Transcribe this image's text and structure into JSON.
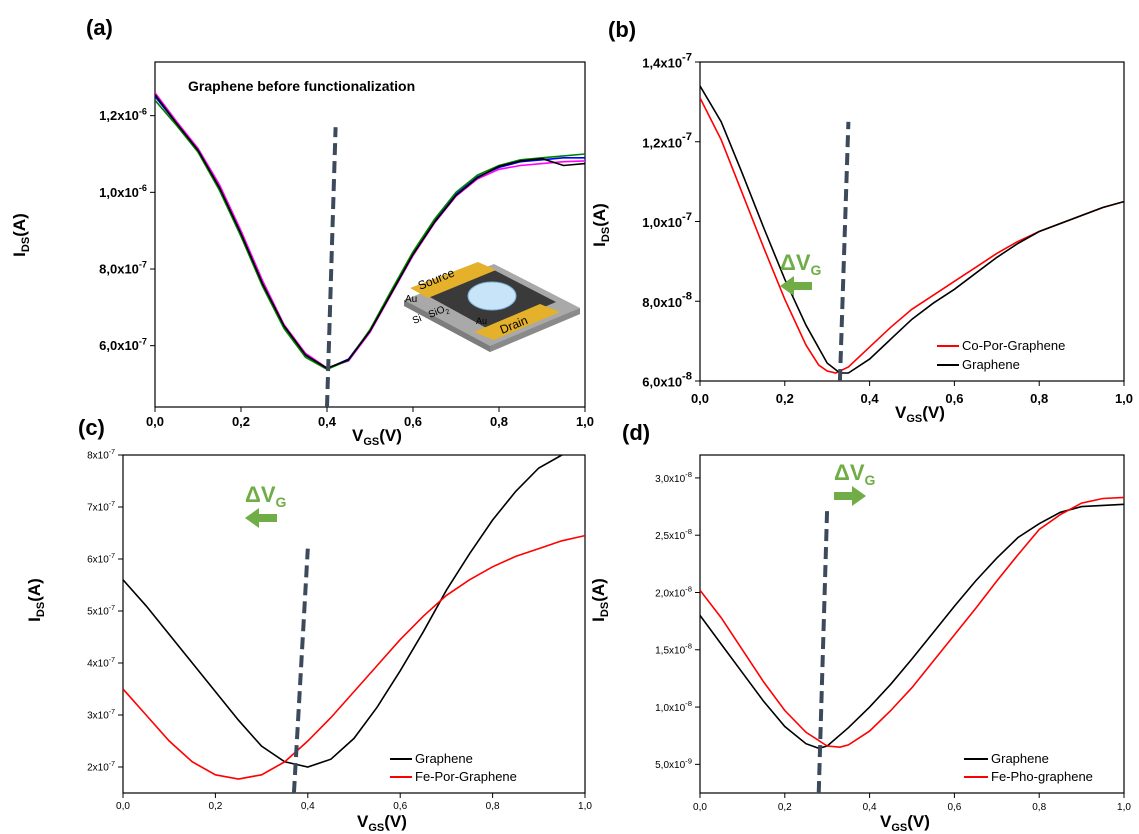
{
  "chart_data": [
    {
      "id": "a",
      "type": "line",
      "panel_label": "(a)",
      "title": "Graphene before functionalization",
      "xlabel": "V",
      "xlabel_sub": "GS",
      "xlabel_unit": "(V)",
      "ylabel": "I",
      "ylabel_sub": "DS",
      "ylabel_unit": "(A)",
      "xlim": [
        0,
        1.0
      ],
      "ylim": [
        4.4e-07,
        1.34e-06
      ],
      "x_ticks": [
        {
          "value": 0.0,
          "label": "0,0"
        },
        {
          "value": 0.2,
          "label": "0,2"
        },
        {
          "value": 0.4,
          "label": "0,4"
        },
        {
          "value": 0.6,
          "label": "0,6"
        },
        {
          "value": 0.8,
          "label": "0,8"
        },
        {
          "value": 1.0,
          "label": "1,0"
        }
      ],
      "y_ticks": [
        {
          "value": 6e-07,
          "mant": "6,0x10",
          "exp": "-7"
        },
        {
          "value": 8e-07,
          "mant": "8,0x10",
          "exp": "-7"
        },
        {
          "value": 1e-06,
          "mant": "1,0x10",
          "exp": "-6"
        },
        {
          "value": 1.2e-06,
          "mant": "1,2x10",
          "exp": "-6"
        }
      ],
      "dirac_line": {
        "x": [
          0.4,
          0.42
        ],
        "y": [
          4.4e-07,
          1.17e-06
        ]
      },
      "series": [
        {
          "color": "#0000ff",
          "x": [
            0,
            0.05,
            0.1,
            0.15,
            0.2,
            0.25,
            0.3,
            0.35,
            0.4,
            0.45,
            0.5,
            0.55,
            0.6,
            0.65,
            0.7,
            0.75,
            0.8,
            0.85,
            0.9,
            0.95,
            1.0
          ],
          "y": [
            1.25e-06,
            1.18e-06,
            1.11e-06,
            1.01e-06,
            8.9e-07,
            7.6e-07,
            6.5e-07,
            5.75e-07,
            5.4e-07,
            5.65e-07,
            6.4e-07,
            7.4e-07,
            8.4e-07,
            9.25e-07,
            9.95e-07,
            1.04e-06,
            1.065e-06,
            1.08e-06,
            1.085e-06,
            1.09e-06,
            1.09e-06
          ]
        },
        {
          "color": "#ff00ff",
          "x": [
            0,
            0.05,
            0.1,
            0.15,
            0.2,
            0.25,
            0.3,
            0.35,
            0.4,
            0.45,
            0.5,
            0.55,
            0.6,
            0.65,
            0.7,
            0.75,
            0.8,
            0.85,
            0.9,
            0.95,
            1.0
          ],
          "y": [
            1.26e-06,
            1.185e-06,
            1.115e-06,
            1.02e-06,
            9e-07,
            7.7e-07,
            6.55e-07,
            5.8e-07,
            5.42e-07,
            5.6e-07,
            6.35e-07,
            7.35e-07,
            8.35e-07,
            9.2e-07,
            9.9e-07,
            1.035e-06,
            1.06e-06,
            1.07e-06,
            1.075e-06,
            1.08e-06,
            1.082e-06
          ]
        },
        {
          "color": "#008000",
          "x": [
            0,
            0.05,
            0.1,
            0.15,
            0.2,
            0.25,
            0.3,
            0.35,
            0.4,
            0.45,
            0.5,
            0.55,
            0.6,
            0.65,
            0.7,
            0.75,
            0.8,
            0.85,
            0.9,
            0.95,
            1.0
          ],
          "y": [
            1.24e-06,
            1.175e-06,
            1.105e-06,
            1.005e-06,
            8.85e-07,
            7.55e-07,
            6.45e-07,
            5.7e-07,
            5.38e-07,
            5.62e-07,
            6.42e-07,
            7.45e-07,
            8.45e-07,
            9.3e-07,
            1e-06,
            1.045e-06,
            1.07e-06,
            1.085e-06,
            1.09e-06,
            1.095e-06,
            1.1e-06
          ]
        },
        {
          "color": "#000000",
          "x": [
            0,
            0.05,
            0.1,
            0.15,
            0.2,
            0.25,
            0.3,
            0.35,
            0.4,
            0.45,
            0.5,
            0.55,
            0.6,
            0.65,
            0.7,
            0.75,
            0.8,
            0.85,
            0.9,
            0.95,
            1.0
          ],
          "y": [
            1.255e-06,
            1.18e-06,
            1.11e-06,
            1.012e-06,
            8.92e-07,
            7.62e-07,
            6.52e-07,
            5.76e-07,
            5.41e-07,
            5.63e-07,
            6.38e-07,
            7.38e-07,
            8.38e-07,
            9.22e-07,
            9.92e-07,
            1.038e-06,
            1.068e-06,
            1.082e-06,
            1.088e-06,
            1.07e-06,
            1.075e-06
          ]
        }
      ],
      "inset_labels": {
        "source": "Source",
        "drain": "Drain",
        "au1": "Au",
        "au2": "Au",
        "si": "Si",
        "sio": "SiO",
        "sio_sub": "2"
      }
    },
    {
      "id": "b",
      "type": "line",
      "panel_label": "(b)",
      "xlabel": "V",
      "xlabel_sub": "GS",
      "xlabel_unit": "(V)",
      "ylabel": "I",
      "ylabel_sub": "DS",
      "ylabel_unit": "(A)",
      "xlim": [
        0,
        1.0
      ],
      "ylim": [
        6e-08,
        1.4e-07
      ],
      "x_ticks": [
        {
          "value": 0.0,
          "label": "0,0"
        },
        {
          "value": 0.2,
          "label": "0,2"
        },
        {
          "value": 0.4,
          "label": "0,4"
        },
        {
          "value": 0.6,
          "label": "0,6"
        },
        {
          "value": 0.8,
          "label": "0,8"
        },
        {
          "value": 1.0,
          "label": "1,0"
        }
      ],
      "y_ticks": [
        {
          "value": 6e-08,
          "mant": "6,0x10",
          "exp": "-8"
        },
        {
          "value": 8e-08,
          "mant": "8,0x10",
          "exp": "-8"
        },
        {
          "value": 1e-07,
          "mant": "1,0x10",
          "exp": "-7"
        },
        {
          "value": 1.2e-07,
          "mant": "1,2x10",
          "exp": "-7"
        },
        {
          "value": 1.4e-07,
          "mant": "1,4x10",
          "exp": "-7"
        }
      ],
      "dirac_line": {
        "x": [
          0.33,
          0.35
        ],
        "y": [
          6e-08,
          1.25e-07
        ]
      },
      "annotation": {
        "text": "ΔV",
        "sub": "G",
        "direction": "left"
      },
      "legend_position": "bottom-right",
      "series": [
        {
          "name": "Co-Por-Graphene",
          "color": "#ff0000",
          "x": [
            0,
            0.05,
            0.1,
            0.15,
            0.2,
            0.25,
            0.28,
            0.3,
            0.32,
            0.35,
            0.4,
            0.45,
            0.5,
            0.55,
            0.6,
            0.65,
            0.7,
            0.75,
            0.8,
            0.85,
            0.9,
            0.95,
            1.0
          ],
          "y": [
            1.31e-07,
            1.205e-07,
            1.07e-07,
            9.35e-08,
            8.05e-08,
            6.9e-08,
            6.4e-08,
            6.25e-08,
            6.2e-08,
            6.35e-08,
            6.85e-08,
            7.35e-08,
            7.8e-08,
            8.15e-08,
            8.5e-08,
            8.85e-08,
            9.2e-08,
            9.5e-08,
            9.75e-08,
            9.95e-08,
            1.015e-07,
            1.035e-07,
            1.05e-07
          ]
        },
        {
          "name": "Graphene",
          "color": "#000000",
          "x": [
            0,
            0.05,
            0.1,
            0.15,
            0.2,
            0.25,
            0.3,
            0.33,
            0.35,
            0.4,
            0.45,
            0.5,
            0.55,
            0.6,
            0.65,
            0.7,
            0.75,
            0.8,
            0.85,
            0.9,
            0.95,
            1.0
          ],
          "y": [
            1.34e-07,
            1.25e-07,
            1.12e-07,
            9.85e-08,
            8.55e-08,
            7.4e-08,
            6.45e-08,
            6.2e-08,
            6.2e-08,
            6.55e-08,
            7.05e-08,
            7.55e-08,
            7.95e-08,
            8.3e-08,
            8.7e-08,
            9.1e-08,
            9.45e-08,
            9.75e-08,
            9.95e-08,
            1.015e-07,
            1.035e-07,
            1.05e-07
          ]
        }
      ]
    },
    {
      "id": "c",
      "type": "line",
      "panel_label": "(c)",
      "xlabel": "V",
      "xlabel_sub": "GS",
      "xlabel_unit": "(V)",
      "ylabel": "I",
      "ylabel_sub": "DS",
      "ylabel_unit": "(A)",
      "xlim": [
        0,
        1.0
      ],
      "ylim": [
        1.5e-07,
        8e-07
      ],
      "x_ticks": [
        {
          "value": 0.0,
          "label": "0,0"
        },
        {
          "value": 0.2,
          "label": "0,2"
        },
        {
          "value": 0.4,
          "label": "0,4"
        },
        {
          "value": 0.6,
          "label": "0,6"
        },
        {
          "value": 0.8,
          "label": "0,8"
        },
        {
          "value": 1.0,
          "label": "1,0"
        }
      ],
      "y_ticks": [
        {
          "value": 2e-07,
          "mant": "2x10",
          "exp": "-7"
        },
        {
          "value": 3e-07,
          "mant": "3x10",
          "exp": "-7"
        },
        {
          "value": 4e-07,
          "mant": "4x10",
          "exp": "-7"
        },
        {
          "value": 5e-07,
          "mant": "5x10",
          "exp": "-7"
        },
        {
          "value": 6e-07,
          "mant": "6x10",
          "exp": "-7"
        },
        {
          "value": 7e-07,
          "mant": "7x10",
          "exp": "-7"
        },
        {
          "value": 8e-07,
          "mant": "8x10",
          "exp": "-7"
        }
      ],
      "dirac_line": {
        "x": [
          0.37,
          0.4
        ],
        "y": [
          1.5e-07,
          6.2e-07
        ]
      },
      "annotation": {
        "text": "ΔV",
        "sub": "G",
        "direction": "left"
      },
      "legend_position": "bottom-right",
      "series": [
        {
          "name": "Graphene",
          "color": "#000000",
          "x": [
            0,
            0.05,
            0.1,
            0.15,
            0.2,
            0.25,
            0.3,
            0.35,
            0.4,
            0.45,
            0.5,
            0.55,
            0.6,
            0.65,
            0.7,
            0.75,
            0.8,
            0.85,
            0.9,
            0.95,
            1.0
          ],
          "y": [
            5.6e-07,
            5.1e-07,
            4.55e-07,
            4e-07,
            3.45e-07,
            2.9e-07,
            2.4e-07,
            2.1e-07,
            2e-07,
            2.15e-07,
            2.55e-07,
            3.15e-07,
            3.85e-07,
            4.6e-07,
            5.4e-07,
            6.1e-07,
            6.75e-07,
            7.3e-07,
            7.75e-07,
            8e-07,
            8.15e-07
          ]
        },
        {
          "name": "Fe-Por-Graphene",
          "color": "#ff0000",
          "x": [
            0,
            0.05,
            0.1,
            0.15,
            0.2,
            0.25,
            0.3,
            0.35,
            0.4,
            0.45,
            0.5,
            0.55,
            0.6,
            0.65,
            0.7,
            0.75,
            0.8,
            0.85,
            0.9,
            0.95,
            1.0
          ],
          "y": [
            3.5e-07,
            3e-07,
            2.5e-07,
            2.1e-07,
            1.85e-07,
            1.77e-07,
            1.85e-07,
            2.1e-07,
            2.5e-07,
            2.95e-07,
            3.45e-07,
            3.95e-07,
            4.45e-07,
            4.9e-07,
            5.3e-07,
            5.6e-07,
            5.85e-07,
            6.05e-07,
            6.2e-07,
            6.35e-07,
            6.45e-07
          ]
        }
      ]
    },
    {
      "id": "d",
      "type": "line",
      "panel_label": "(d)",
      "xlabel": "V",
      "xlabel_sub": "GS",
      "xlabel_unit": "(V)",
      "ylabel": "I",
      "ylabel_sub": "DS",
      "ylabel_unit": "(A)",
      "xlim": [
        0,
        1.0
      ],
      "ylim": [
        2.5e-09,
        3.2e-08
      ],
      "x_ticks": [
        {
          "value": 0.0,
          "label": "0,0"
        },
        {
          "value": 0.2,
          "label": "0,2"
        },
        {
          "value": 0.4,
          "label": "0,4"
        },
        {
          "value": 0.6,
          "label": "0,6"
        },
        {
          "value": 0.8,
          "label": "0,8"
        },
        {
          "value": 1.0,
          "label": "1,0"
        }
      ],
      "y_ticks": [
        {
          "value": 5e-09,
          "mant": "5,0x10",
          "exp": "-9"
        },
        {
          "value": 1e-08,
          "mant": "1,0x10",
          "exp": "-8"
        },
        {
          "value": 1.5e-08,
          "mant": "1,5x10",
          "exp": "-8"
        },
        {
          "value": 2e-08,
          "mant": "2,0x10",
          "exp": "-8"
        },
        {
          "value": 2.5e-08,
          "mant": "2,5x10",
          "exp": "-8"
        },
        {
          "value": 3e-08,
          "mant": "3,0x10",
          "exp": "-8"
        }
      ],
      "dirac_line": {
        "x": [
          0.28,
          0.3
        ],
        "y": [
          2.5e-09,
          2.75e-08
        ]
      },
      "annotation": {
        "text": "ΔV",
        "sub": "G",
        "direction": "right"
      },
      "legend_position": "bottom-right",
      "series": [
        {
          "name": "Graphene",
          "color": "#000000",
          "x": [
            0,
            0.05,
            0.1,
            0.15,
            0.2,
            0.25,
            0.28,
            0.3,
            0.35,
            0.4,
            0.45,
            0.5,
            0.55,
            0.6,
            0.65,
            0.7,
            0.75,
            0.8,
            0.85,
            0.9,
            0.95,
            1.0
          ],
          "y": [
            1.8e-08,
            1.55e-08,
            1.3e-08,
            1.05e-08,
            8.3e-09,
            6.8e-09,
            6.4e-09,
            6.6e-09,
            8.2e-09,
            1e-08,
            1.2e-08,
            1.42e-08,
            1.65e-08,
            1.88e-08,
            2.1e-08,
            2.3e-08,
            2.48e-08,
            2.6e-08,
            2.7e-08,
            2.75e-08,
            2.76e-08,
            2.77e-08
          ]
        },
        {
          "name": "Fe-Pho-graphene",
          "color": "#ff0000",
          "x": [
            0,
            0.05,
            0.1,
            0.15,
            0.2,
            0.25,
            0.3,
            0.33,
            0.35,
            0.4,
            0.45,
            0.5,
            0.55,
            0.6,
            0.65,
            0.7,
            0.75,
            0.8,
            0.85,
            0.9,
            0.95,
            1.0
          ],
          "y": [
            2.02e-08,
            1.78e-08,
            1.5e-08,
            1.22e-08,
            9.7e-09,
            7.8e-09,
            6.6e-09,
            6.5e-09,
            6.7e-09,
            7.9e-09,
            9.7e-09,
            1.17e-08,
            1.4e-08,
            1.63e-08,
            1.86e-08,
            2.1e-08,
            2.33e-08,
            2.55e-08,
            2.68e-08,
            2.78e-08,
            2.82e-08,
            2.83e-08
          ]
        }
      ]
    }
  ]
}
